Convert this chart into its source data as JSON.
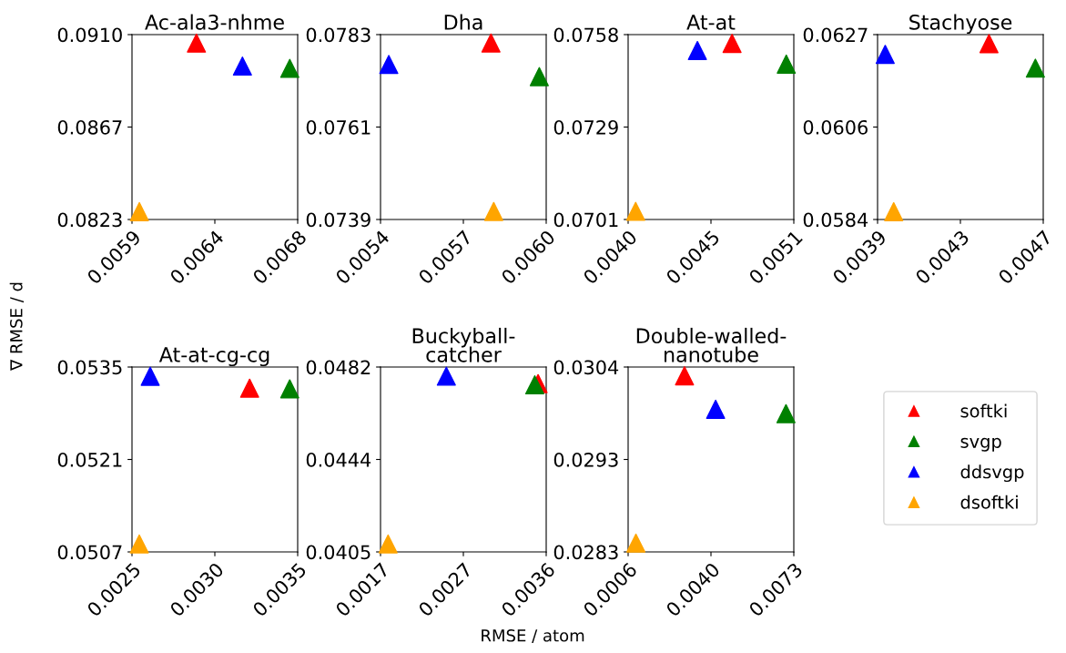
{
  "chart_data": [
    {
      "type": "scatter",
      "title": "Ac-ala3-nhme",
      "ylabel": "∇ RMSE / d",
      "marker": "triangle",
      "grid": false,
      "xlim": [
        0.0059,
        0.0068
      ],
      "xticks": [
        0.0059,
        {
          "value": 0.00635,
          "label": "0.0064"
        },
        0.0068
      ],
      "ylim": [
        0.0823,
        0.091
      ],
      "yticks": [
        {
          "value": 0.0823,
          "label": "0.0823"
        },
        {
          "value": 0.08665,
          "label": "0.0867"
        },
        {
          "value": 0.091,
          "label": "0.0910"
        }
      ],
      "series": [
        {
          "color": "#ff0000",
          "x": [
            0.00625
          ],
          "values": [
            0.0906
          ]
        },
        {
          "color": "#008000",
          "x": [
            0.006757
          ],
          "values": [
            0.08941
          ]
        },
        {
          "color": "#0000ff",
          "x": [
            0.0065
          ],
          "values": [
            0.08952
          ]
        },
        {
          "color": "#ffa500",
          "x": [
            0.00594
          ],
          "values": [
            0.08267
          ]
        }
      ]
    },
    {
      "type": "scatter",
      "title": "Dha",
      "marker": "triangle",
      "grid": false,
      "xlim": [
        0.0054,
        0.006
      ],
      "xticks": [
        0.0054,
        0.0057,
        {
          "value": 0.006,
          "label": "0.0060"
        }
      ],
      "ylim": [
        0.0739,
        0.0783
      ],
      "yticks": [
        0.0739,
        0.0761,
        0.0783
      ],
      "series": [
        {
          "color": "#ff0000",
          "x": [
            0.0058
          ],
          "values": [
            0.0781
          ]
        },
        {
          "color": "#008000",
          "x": [
            0.005975
          ],
          "values": [
            0.0773
          ]
        },
        {
          "color": "#0000ff",
          "x": [
            0.00543
          ],
          "values": [
            0.07759
          ]
        },
        {
          "color": "#ffa500",
          "x": [
            0.00581
          ],
          "values": [
            0.07409
          ]
        }
      ]
    },
    {
      "type": "scatter",
      "title": "At-at",
      "marker": "triangle",
      "grid": false,
      "xlim": [
        0.004,
        0.0051
      ],
      "xticks": [
        {
          "value": 0.004,
          "label": "0.0040"
        },
        {
          "value": 0.00455,
          "label": "0.0045"
        },
        0.0051
      ],
      "ylim": [
        0.0701,
        0.0758
      ],
      "yticks": [
        0.0701,
        {
          "value": 0.07295,
          "label": "0.0729"
        },
        0.0758
      ],
      "series": [
        {
          "color": "#ff0000",
          "x": [
            0.00469
          ],
          "values": [
            0.07553
          ]
        },
        {
          "color": "#008000",
          "x": [
            0.00505
          ],
          "values": [
            0.07489
          ]
        },
        {
          "color": "#0000ff",
          "x": [
            0.00446
          ],
          "values": [
            0.07531
          ]
        },
        {
          "color": "#ffa500",
          "x": [
            0.00405
          ],
          "values": [
            0.07035
          ]
        }
      ]
    },
    {
      "type": "scatter",
      "title": "Stachyose",
      "marker": "triangle",
      "grid": false,
      "xlim": [
        0.0039,
        0.0047
      ],
      "xticks": [
        0.0039,
        0.0043,
        0.0047
      ],
      "ylim": [
        0.0584,
        0.0627
      ],
      "yticks": [
        0.0584,
        {
          "value": 0.06055,
          "label": "0.0606"
        },
        0.0627
      ],
      "series": [
        {
          "color": "#ff0000",
          "x": [
            0.004438
          ],
          "values": [
            0.06249
          ]
        },
        {
          "color": "#008000",
          "x": [
            0.004662
          ],
          "values": [
            0.06192
          ]
        },
        {
          "color": "#0000ff",
          "x": [
            0.003937
          ],
          "values": [
            0.06224
          ]
        },
        {
          "color": "#ffa500",
          "x": [
            0.003978
          ],
          "values": [
            0.05858
          ]
        }
      ]
    },
    {
      "type": "scatter",
      "title": "At-at-cg-cg",
      "marker": "triangle",
      "grid": false,
      "xlim": [
        0.0025,
        0.0035
      ],
      "xticks": [
        0.0025,
        {
          "value": 0.003,
          "label": "0.0030"
        },
        0.0035
      ],
      "ylim": [
        0.0507,
        0.0535
      ],
      "yticks": [
        0.0507,
        0.0521,
        0.0535
      ],
      "series": [
        {
          "color": "#ff0000",
          "x": [
            0.00321
          ],
          "values": [
            0.05318
          ]
        },
        {
          "color": "#008000",
          "x": [
            0.003452
          ],
          "values": [
            0.05317
          ]
        },
        {
          "color": "#0000ff",
          "x": [
            0.00261
          ],
          "values": [
            0.05336
          ]
        },
        {
          "color": "#ffa500",
          "x": [
            0.002544
          ],
          "values": [
            0.05082
          ]
        }
      ]
    },
    {
      "type": "scatter",
      "title": "Buckyball-\ncatcher",
      "xlabel": "RMSE / atom",
      "marker": "triangle",
      "grid": false,
      "xlim": [
        0.0017,
        0.0036
      ],
      "xticks": [
        0.0017,
        {
          "value": 0.00265,
          "label": "0.0027"
        },
        0.0036
      ],
      "ylim": [
        0.0405,
        0.0482
      ],
      "yticks": [
        0.0405,
        {
          "value": 0.04435,
          "label": "0.0444"
        },
        0.0482
      ],
      "series": [
        {
          "color": "#ff0000",
          "x": [
            0.003507
          ],
          "values": [
            0.04751
          ]
        },
        {
          "color": "#008000",
          "x": [
            0.003469
          ],
          "values": [
            0.04746
          ]
        },
        {
          "color": "#0000ff",
          "x": [
            0.002455
          ],
          "values": [
            0.04782
          ]
        },
        {
          "color": "#ffa500",
          "x": [
            0.001787
          ],
          "values": [
            0.04083
          ]
        }
      ]
    },
    {
      "type": "scatter",
      "title": "Double-walled-\nnanotube",
      "marker": "triangle",
      "grid": false,
      "legend": "right",
      "xlim": [
        0.0006,
        0.0073
      ],
      "xticks": [
        0.0006,
        {
          "value": 0.00395,
          "label": "0.0040"
        },
        0.0073
      ],
      "ylim": [
        0.0283,
        0.0304
      ],
      "yticks": [
        0.0283,
        {
          "value": 0.02935,
          "label": "0.0293"
        },
        0.0304
      ],
      "series": [
        {
          "name": "softki",
          "color": "#ff0000",
          "x": [
            0.00288
          ],
          "values": [
            0.0303
          ]
        },
        {
          "name": "svgp",
          "color": "#008000",
          "x": [
            0.006984
          ],
          "values": [
            0.02987
          ]
        },
        {
          "name": "ddsvgp",
          "color": "#0000ff",
          "x": [
            0.004138
          ],
          "values": [
            0.02992
          ]
        },
        {
          "name": "dsoftki",
          "color": "#ffa500",
          "x": [
            0.000915
          ],
          "values": [
            0.0284
          ]
        }
      ]
    }
  ]
}
